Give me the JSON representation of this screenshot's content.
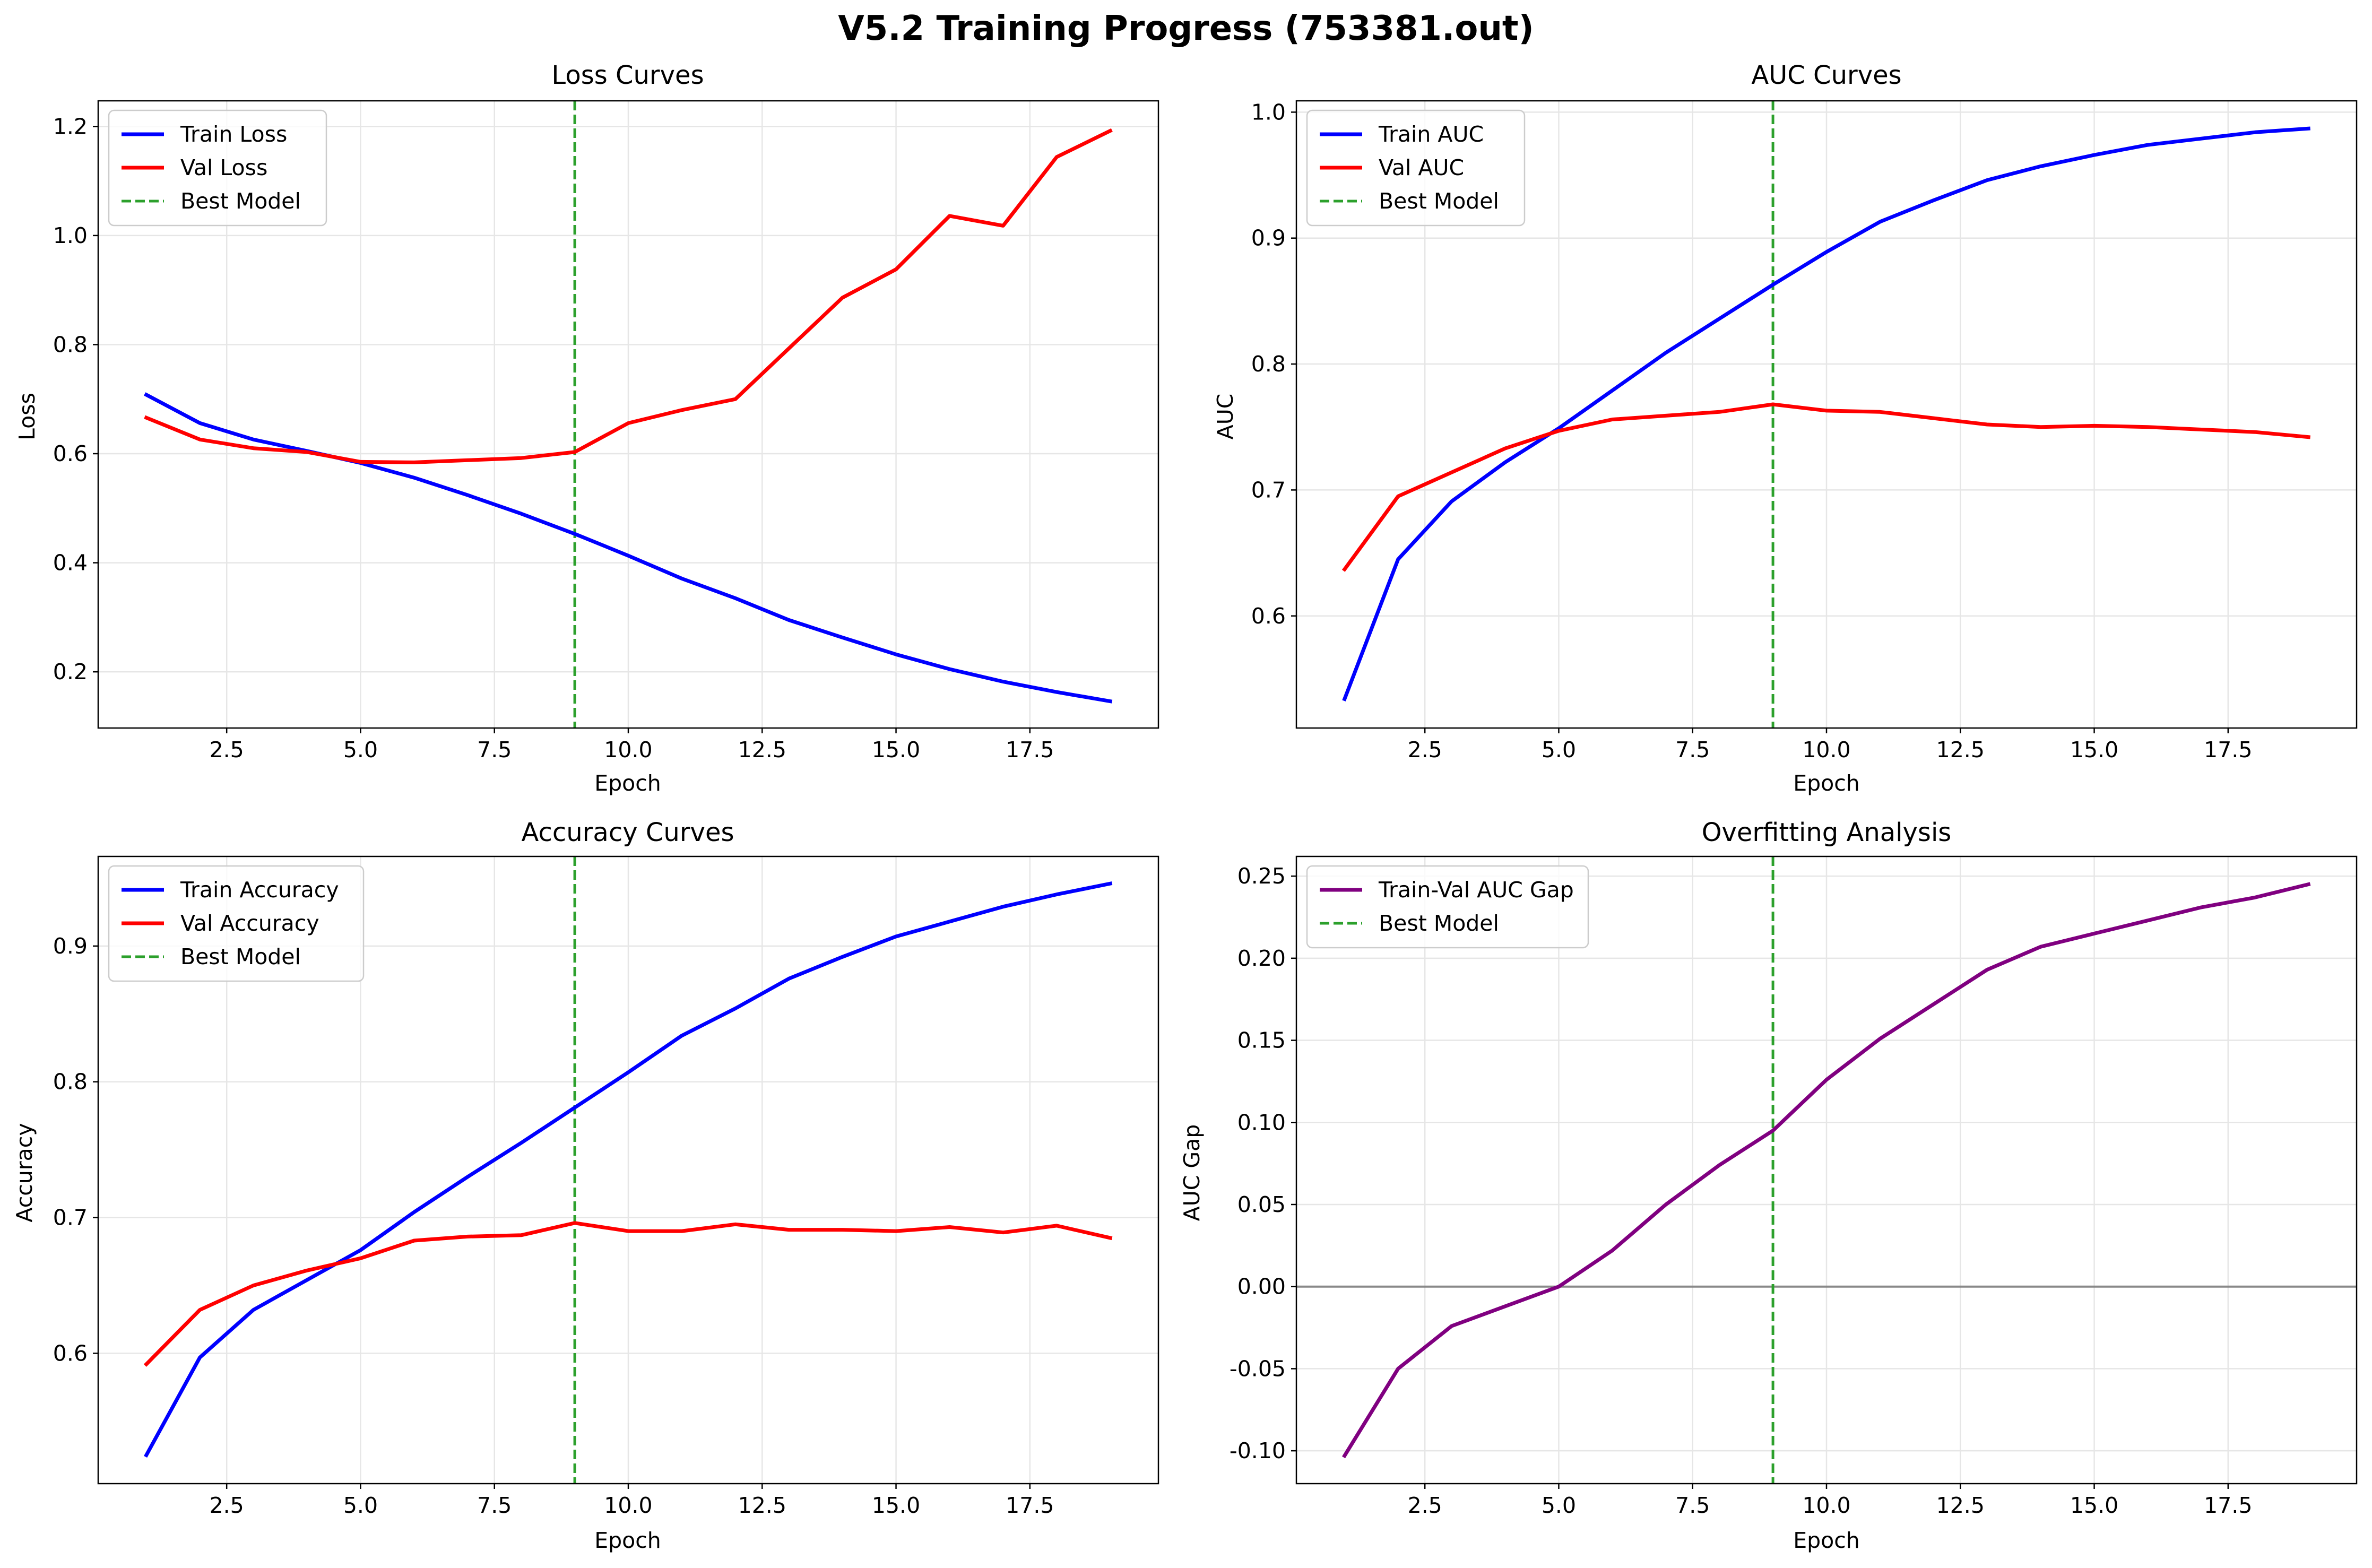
{
  "figure_title": "V5.2 Training Progress (753381.out)",
  "colors": {
    "train": "#0000ff",
    "val": "#ff0000",
    "best": "#2ca02c",
    "gap": "#800080",
    "zero_line": "#808080",
    "grid": "#e6e6e6"
  },
  "chart_data": [
    {
      "type": "line",
      "title": "Loss Curves",
      "xlabel": "Epoch",
      "ylabel": "Loss",
      "xlim": [
        0.1,
        19.9
      ],
      "ylim": [
        0.097,
        1.247
      ],
      "xticks": [
        2.5,
        5.0,
        7.5,
        10.0,
        12.5,
        15.0,
        17.5
      ],
      "yticks": [
        0.2,
        0.4,
        0.6,
        0.8,
        1.0,
        1.2
      ],
      "grid": true,
      "legend_position": "upper-left",
      "best_epoch": 9,
      "x": [
        1,
        2,
        3,
        4,
        5,
        6,
        7,
        8,
        9,
        10,
        11,
        12,
        13,
        14,
        15,
        16,
        17,
        18,
        19
      ],
      "series": [
        {
          "name": "Train Loss",
          "color": "#0000ff",
          "values": [
            0.708,
            0.656,
            0.626,
            0.605,
            0.583,
            0.556,
            0.524,
            0.49,
            0.453,
            0.413,
            0.371,
            0.335,
            0.295,
            0.263,
            0.232,
            0.205,
            0.182,
            0.163,
            0.146
          ]
        },
        {
          "name": "Val Loss",
          "color": "#ff0000",
          "values": [
            0.666,
            0.626,
            0.61,
            0.603,
            0.585,
            0.584,
            0.588,
            0.592,
            0.603,
            0.656,
            0.68,
            0.7,
            0.793,
            0.886,
            0.938,
            1.036,
            1.018,
            1.144,
            1.192
          ]
        }
      ],
      "legend": [
        "Train Loss",
        "Val Loss",
        "Best Model"
      ]
    },
    {
      "type": "line",
      "title": "AUC Curves",
      "xlabel": "Epoch",
      "ylabel": "AUC",
      "xlim": [
        0.1,
        19.9
      ],
      "ylim": [
        0.511,
        1.009
      ],
      "xticks": [
        2.5,
        5.0,
        7.5,
        10.0,
        12.5,
        15.0,
        17.5
      ],
      "yticks": [
        0.6,
        0.7,
        0.8,
        0.9,
        1.0
      ],
      "grid": true,
      "legend_position": "upper-left",
      "best_epoch": 9,
      "x": [
        1,
        2,
        3,
        4,
        5,
        6,
        7,
        8,
        9,
        10,
        11,
        12,
        13,
        14,
        15,
        16,
        17,
        18,
        19
      ],
      "series": [
        {
          "name": "Train AUC",
          "color": "#0000ff",
          "values": [
            0.534,
            0.645,
            0.691,
            0.722,
            0.749,
            0.779,
            0.809,
            0.836,
            0.863,
            0.889,
            0.913,
            0.93,
            0.946,
            0.957,
            0.966,
            0.974,
            0.979,
            0.984,
            0.987
          ]
        },
        {
          "name": "Val AUC",
          "color": "#ff0000",
          "values": [
            0.637,
            0.695,
            0.714,
            0.733,
            0.747,
            0.756,
            0.759,
            0.762,
            0.768,
            0.763,
            0.762,
            0.757,
            0.752,
            0.75,
            0.751,
            0.75,
            0.748,
            0.746,
            0.742
          ]
        }
      ],
      "legend": [
        "Train AUC",
        "Val AUC",
        "Best Model"
      ]
    },
    {
      "type": "line",
      "title": "Accuracy Curves",
      "xlabel": "Epoch",
      "ylabel": "Accuracy",
      "xlim": [
        0.1,
        19.9
      ],
      "ylim": [
        0.504,
        0.966
      ],
      "xticks": [
        2.5,
        5.0,
        7.5,
        10.0,
        12.5,
        15.0,
        17.5
      ],
      "yticks": [
        0.6,
        0.7,
        0.8,
        0.9
      ],
      "grid": true,
      "legend_position": "upper-left",
      "best_epoch": 9,
      "x": [
        1,
        2,
        3,
        4,
        5,
        6,
        7,
        8,
        9,
        10,
        11,
        12,
        13,
        14,
        15,
        16,
        17,
        18,
        19
      ],
      "series": [
        {
          "name": "Train Accuracy",
          "color": "#0000ff",
          "values": [
            0.525,
            0.597,
            0.632,
            0.654,
            0.676,
            0.704,
            0.73,
            0.755,
            0.781,
            0.807,
            0.834,
            0.854,
            0.876,
            0.892,
            0.907,
            0.918,
            0.929,
            0.938,
            0.946
          ]
        },
        {
          "name": "Val Accuracy",
          "color": "#ff0000",
          "values": [
            0.592,
            0.632,
            0.65,
            0.661,
            0.67,
            0.683,
            0.686,
            0.687,
            0.696,
            0.69,
            0.69,
            0.695,
            0.691,
            0.691,
            0.69,
            0.693,
            0.689,
            0.694,
            0.685
          ]
        }
      ],
      "legend": [
        "Train Accuracy",
        "Val Accuracy",
        "Best Model"
      ]
    },
    {
      "type": "line",
      "title": "Overfitting Analysis",
      "xlabel": "Epoch",
      "ylabel": "AUC Gap",
      "xlim": [
        0.1,
        19.9
      ],
      "ylim": [
        -0.12,
        0.262
      ],
      "xticks": [
        2.5,
        5.0,
        7.5,
        10.0,
        12.5,
        15.0,
        17.5
      ],
      "yticks": [
        -0.1,
        -0.05,
        0.0,
        0.05,
        0.1,
        0.15,
        0.2,
        0.25
      ],
      "grid": true,
      "legend_position": "upper-left",
      "best_epoch": 9,
      "zero_line": true,
      "x": [
        1,
        2,
        3,
        4,
        5,
        6,
        7,
        8,
        9,
        10,
        11,
        12,
        13,
        14,
        15,
        16,
        17,
        18,
        19
      ],
      "series": [
        {
          "name": "Train-Val AUC Gap",
          "color": "#800080",
          "values": [
            -0.103,
            -0.05,
            -0.024,
            -0.012,
            0.0,
            0.022,
            0.05,
            0.074,
            0.095,
            0.126,
            0.151,
            0.172,
            0.193,
            0.207,
            0.215,
            0.223,
            0.231,
            0.237,
            0.245
          ]
        }
      ],
      "legend": [
        "Train-Val AUC Gap",
        "Best Model"
      ]
    }
  ]
}
